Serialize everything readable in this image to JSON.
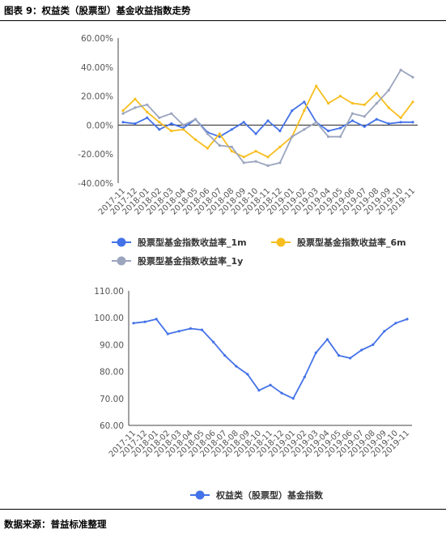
{
  "header": {
    "title": "图表 9：权益类（股票型）基金收益指数走势"
  },
  "source": {
    "text": "数据来源：普益标准整理"
  },
  "chart_data": [
    {
      "type": "line",
      "x": [
        "2017-11",
        "2017-12",
        "2018-01",
        "2018-02",
        "2018-03",
        "2018-04",
        "2018-05",
        "2018-06",
        "2018-07",
        "2018-08",
        "2018-09",
        "2018-10",
        "2018-11",
        "2018-12",
        "2019-01",
        "2019-02",
        "2019-03",
        "2019-04",
        "2019-05",
        "2019-06",
        "2019-07",
        "2019-08",
        "2019-09",
        "2019-10",
        "2019-11"
      ],
      "y_ticks": [
        "60.00%",
        "40.00%",
        "20.00%",
        "0.00%",
        "-20.00%",
        "-40.00%"
      ],
      "ylim": [
        -40,
        60
      ],
      "y_unit": "%",
      "grid": false,
      "legend_position": "bottom",
      "series": [
        {
          "name": "股票型基金指数收益率_1m",
          "color": "#4472e8",
          "values": [
            2,
            1,
            5,
            -3,
            1,
            -2,
            4,
            -5,
            -8,
            -3,
            2,
            -6,
            3,
            -4,
            10,
            16,
            2,
            -4,
            -2,
            3,
            -1,
            4,
            1,
            2,
            2
          ]
        },
        {
          "name": "股票型基金指数收益率_6m",
          "color": "#f7be1e",
          "values": [
            10,
            18,
            9,
            2,
            -4,
            -3,
            -10,
            -16,
            -6,
            -18,
            -22,
            -18,
            -22,
            -15,
            -8,
            10,
            27,
            15,
            20,
            15,
            14,
            22,
            12,
            5,
            16
          ]
        },
        {
          "name": "股票型基金指数收益率_1y",
          "color": "#9ba5be",
          "values": [
            8,
            12,
            14,
            5,
            8,
            0,
            4,
            -6,
            -14,
            -15,
            -26,
            -25,
            -28,
            -26,
            -8,
            -3,
            2,
            -8,
            -8,
            8,
            6,
            15,
            24,
            38,
            33
          ]
        }
      ]
    },
    {
      "type": "line",
      "x": [
        "2017-11",
        "2017-12",
        "2018-01",
        "2018-02",
        "2018-03",
        "2018-04",
        "2018-05",
        "2018-06",
        "2018-07",
        "2018-08",
        "2018-09",
        "2018-10",
        "2018-11",
        "2018-12",
        "2019-01",
        "2019-02",
        "2019-03",
        "2019-04",
        "2019-05",
        "2019-06",
        "2019-07",
        "2019-08",
        "2019-09",
        "2019-10",
        "2019-11"
      ],
      "y_ticks": [
        "110.00",
        "100.00",
        "90.00",
        "80.00",
        "70.00",
        "60.00"
      ],
      "ylim": [
        60,
        110
      ],
      "grid": false,
      "legend_position": "bottom",
      "series": [
        {
          "name": "权益类（股票型）基金指数",
          "color": "#4472e8",
          "values": [
            98,
            98.5,
            99.5,
            94,
            95,
            96,
            95.5,
            91,
            86,
            82,
            79,
            73,
            75,
            72,
            70,
            78,
            87,
            92,
            86,
            85,
            88,
            90,
            95,
            98,
            99.5
          ]
        }
      ]
    }
  ]
}
